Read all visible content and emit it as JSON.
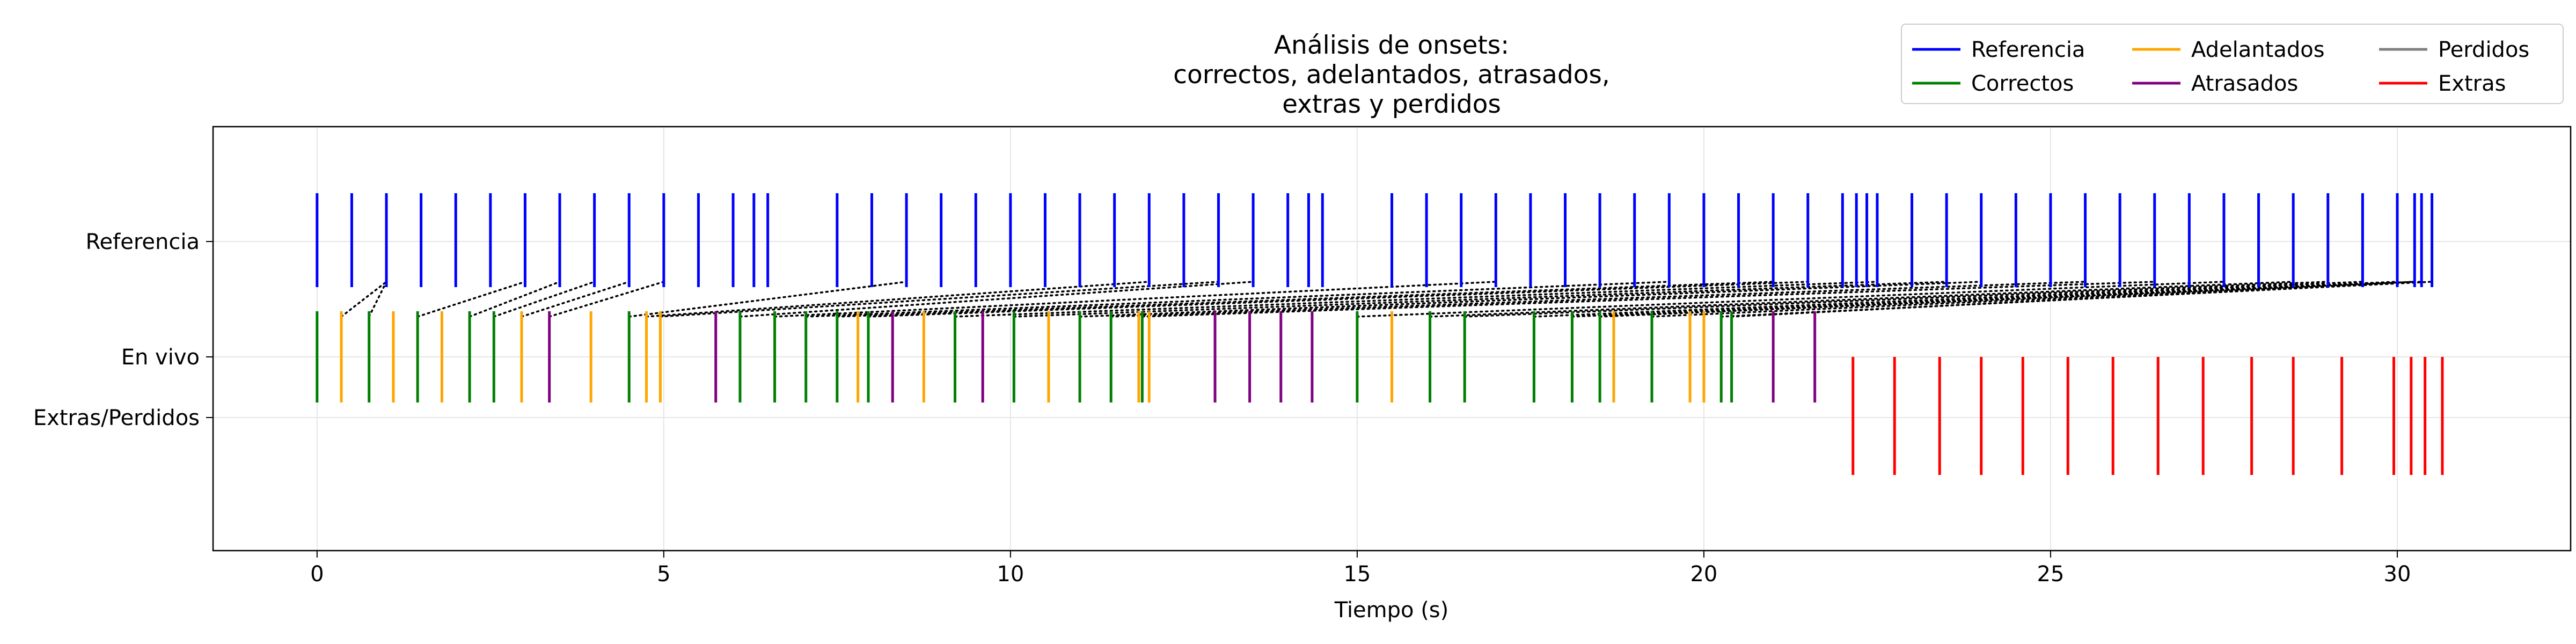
{
  "chart_data": {
    "type": "event-raster",
    "title": [
      "Análisis de onsets:",
      "correctos, adelantados, atrasados,",
      "extras y perdidos"
    ],
    "xlabel": "Tiempo (s)",
    "ylabel": "",
    "xlim": [
      -1.5,
      32.5
    ],
    "xticks": [
      0,
      5,
      10,
      15,
      20,
      25,
      30
    ],
    "yticks": [
      "Referencia",
      "En vivo",
      "Extras/Perdidos"
    ],
    "grid": true,
    "legend_position": "top-right",
    "legend": [
      {
        "label": "Referencia",
        "color": "#0000ff"
      },
      {
        "label": "Correctos",
        "color": "#008000"
      },
      {
        "label": "Adelantados",
        "color": "#ffa500"
      },
      {
        "label": "Atrasados",
        "color": "#800080"
      },
      {
        "label": "Perdidos",
        "color": "#808080"
      },
      {
        "label": "Extras",
        "color": "#ff0000"
      }
    ],
    "series": [
      {
        "name": "Referencia",
        "row": "Referencia",
        "color": "#0000ff",
        "x": [
          0,
          0.5,
          1,
          1.5,
          2,
          2.5,
          3,
          3.5,
          4,
          4.5,
          5,
          5.5,
          6,
          6.3,
          6.5,
          7.5,
          8,
          8.5,
          9,
          9.5,
          10,
          10.5,
          11,
          11.5,
          12,
          12.5,
          13,
          13.5,
          14,
          14.3,
          14.5,
          15.5,
          16,
          16.5,
          17,
          17.5,
          18,
          18.5,
          19,
          19.5,
          20,
          20.5,
          21,
          21.5,
          22,
          22.2,
          22.35,
          22.5,
          23,
          23.5,
          24,
          24.5,
          25,
          25.5,
          26,
          26.5,
          27,
          27.5,
          28,
          28.5,
          29,
          29.5,
          30,
          30.25,
          30.35,
          30.5
        ]
      },
      {
        "name": "Correctos",
        "row": "En vivo",
        "color": "#008000",
        "x": [
          0,
          0.75,
          1.45,
          2.2,
          2.55,
          4.5,
          6.1,
          6.6,
          7.05,
          7.5,
          7.95,
          9.2,
          10.05,
          11.0,
          11.45,
          11.9,
          15.0,
          16.05,
          16.55,
          17.55,
          18.1,
          18.5,
          19.25,
          20.25,
          20.4
        ]
      },
      {
        "name": "Adelantados",
        "row": "En vivo",
        "color": "#ffa500",
        "x": [
          0.35,
          1.1,
          1.8,
          2.95,
          3.95,
          4.75,
          4.95,
          7.8,
          8.75,
          10.55,
          11.85,
          12.0,
          15.5,
          18.7,
          19.8,
          20.0
        ]
      },
      {
        "name": "Atrasados",
        "row": "En vivo",
        "color": "#800080",
        "x": [
          3.35,
          5.75,
          8.3,
          9.6,
          12.95,
          13.45,
          13.9,
          14.35,
          21.0,
          21.6
        ]
      },
      {
        "name": "Perdidos",
        "row": "Extras/Perdidos",
        "color": "#808080",
        "x": []
      },
      {
        "name": "Extras",
        "row": "Extras/Perdidos",
        "color": "#ff0000",
        "x": [
          22.15,
          22.75,
          23.4,
          24.0,
          24.6,
          25.25,
          25.9,
          26.55,
          27.2,
          27.9,
          28.5,
          29.2,
          29.95,
          30.2,
          30.4,
          30.65
        ]
      }
    ],
    "matches": [
      {
        "ref": 1,
        "live": 0.35
      },
      {
        "ref": 1,
        "live": 0.75
      },
      {
        "ref": 3,
        "live": 1.45
      },
      {
        "ref": 3.5,
        "live": 2.2
      },
      {
        "ref": 4,
        "live": 2.55
      },
      {
        "ref": 4.5,
        "live": 2.95
      },
      {
        "ref": 5,
        "live": 3.35
      },
      {
        "ref": 8.5,
        "live": 4.5
      },
      {
        "ref": 12,
        "live": 4.75
      },
      {
        "ref": 13,
        "live": 4.95
      },
      {
        "ref": 13.5,
        "live": 6.1
      },
      {
        "ref": 17,
        "live": 6.6
      },
      {
        "ref": 19.5,
        "live": 7.05
      },
      {
        "ref": 21,
        "live": 7.5
      },
      {
        "ref": 21.5,
        "live": 7.95
      },
      {
        "ref": 22.5,
        "live": 9.2
      },
      {
        "ref": 23.5,
        "live": 10.05
      },
      {
        "ref": 24,
        "live": 11.0
      },
      {
        "ref": 25.5,
        "live": 11.45
      },
      {
        "ref": 26.5,
        "live": 11.9
      },
      {
        "ref": 27.5,
        "live": 15.0
      },
      {
        "ref": 28.5,
        "live": 16.05
      },
      {
        "ref": 29,
        "live": 16.55
      },
      {
        "ref": 29.5,
        "live": 17.55
      },
      {
        "ref": 30,
        "live": 18.1
      },
      {
        "ref": 30.25,
        "live": 18.5
      },
      {
        "ref": 30.35,
        "live": 19.25
      },
      {
        "ref": 30.5,
        "live": 20.25
      },
      {
        "ref": 30.25,
        "live": 20.4
      }
    ]
  }
}
